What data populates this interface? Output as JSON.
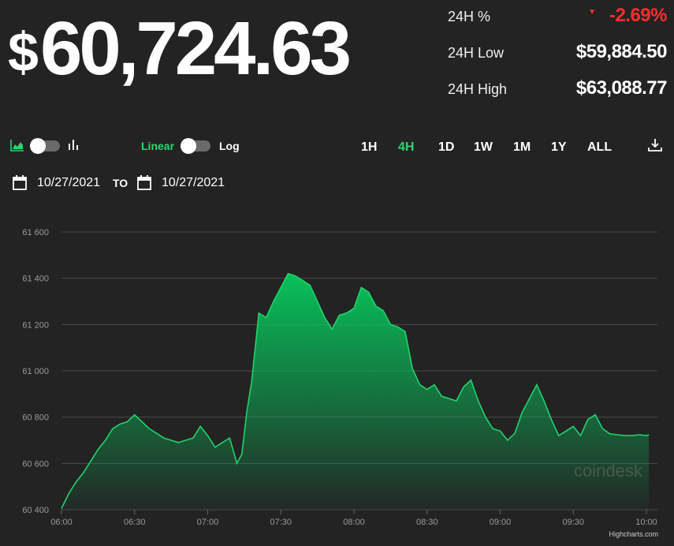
{
  "header": {
    "currency_symbol": "$",
    "price": "60,724.63"
  },
  "stats": [
    {
      "label": "24H %",
      "value": "-2.69%",
      "direction": "down"
    },
    {
      "label": "24H Low",
      "value": "$59,884.50"
    },
    {
      "label": "24H High",
      "value": "$63,088.77"
    }
  ],
  "controls": {
    "chart_type_left_icon": "area-chart-icon",
    "chart_type_right_icon": "bar-chart-icon",
    "scale_linear": "Linear",
    "scale_log": "Log",
    "scale_selected": "Linear",
    "ranges": [
      "1H",
      "4H",
      "1D",
      "1W",
      "1M",
      "1Y",
      "ALL"
    ],
    "active_range": "4H",
    "download_icon": "download-icon"
  },
  "date_range": {
    "from": "10/27/2021",
    "to_label": "TO",
    "to": "10/27/2021",
    "calendar_icon": "calendar-icon"
  },
  "colors": {
    "background": "#232323",
    "accent_green": "#2ed56d",
    "negative_red": "#ff2d2d",
    "line_green": "#1fd46a"
  },
  "watermark": "coindesk",
  "credit": "Highcharts.com",
  "chart_data": {
    "type": "area",
    "title": "",
    "xlabel": "",
    "ylabel": "",
    "x_ticks": [
      "06:00",
      "06:30",
      "07:00",
      "07:30",
      "08:00",
      "08:30",
      "09:00",
      "09:30",
      "10:00"
    ],
    "y_ticks": [
      "60 400",
      "60 600",
      "60 800",
      "61 000",
      "61 200",
      "61 400",
      "61 600"
    ],
    "ylim": [
      60400,
      61600
    ],
    "xlim": [
      "06:00",
      "10:00"
    ],
    "grid": true,
    "series": [
      {
        "x": [
          "06:00",
          "06:03",
          "06:06",
          "06:09",
          "06:12",
          "06:15",
          "06:18",
          "06:21",
          "06:24",
          "06:27",
          "06:30",
          "06:33",
          "06:36",
          "06:39",
          "06:42",
          "06:45",
          "06:48",
          "06:51",
          "06:54",
          "06:57",
          "07:00",
          "07:03",
          "07:06",
          "07:09",
          "07:12",
          "07:14",
          "07:16",
          "07:18",
          "07:21",
          "07:24",
          "07:27",
          "07:30",
          "07:33",
          "07:36",
          "07:39",
          "07:42",
          "07:45",
          "07:48",
          "07:51",
          "07:54",
          "07:57",
          "08:00",
          "08:03",
          "08:06",
          "08:09",
          "08:12",
          "08:15",
          "08:18",
          "08:21",
          "08:24",
          "08:27",
          "08:30",
          "08:33",
          "08:36",
          "08:39",
          "08:42",
          "08:45",
          "08:48",
          "08:51",
          "08:54",
          "08:57",
          "09:00",
          "09:03",
          "09:06",
          "09:09",
          "09:12",
          "09:15",
          "09:18",
          "09:21",
          "09:24",
          "09:27",
          "09:30",
          "09:33",
          "09:36",
          "09:39",
          "09:42",
          "09:45",
          "09:48",
          "09:51",
          "09:54",
          "09:57",
          "10:00",
          "10:01"
        ],
        "y": [
          60405,
          60470,
          60520,
          60560,
          60610,
          60660,
          60700,
          60750,
          60770,
          60780,
          60810,
          60780,
          60750,
          60730,
          60710,
          60700,
          60690,
          60700,
          60710,
          60760,
          60720,
          60670,
          60690,
          60710,
          60600,
          60640,
          60820,
          60950,
          61250,
          61230,
          61300,
          61360,
          61420,
          61410,
          61390,
          61370,
          61300,
          61230,
          61180,
          61240,
          61250,
          61270,
          61360,
          61340,
          61280,
          61260,
          61200,
          61190,
          61170,
          61010,
          60940,
          60920,
          60940,
          60890,
          60880,
          60870,
          60930,
          60960,
          60870,
          60800,
          60750,
          60740,
          60700,
          60730,
          60820,
          60880,
          60940,
          60870,
          60790,
          60720,
          60740,
          60760,
          60720,
          60790,
          60810,
          60750,
          60728,
          60724,
          60720,
          60720,
          60724,
          60720,
          60724
        ]
      }
    ]
  }
}
